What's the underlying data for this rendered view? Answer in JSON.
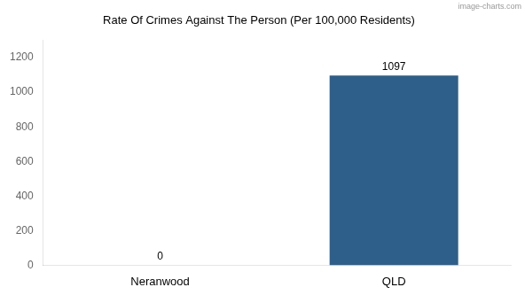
{
  "chart_data": {
    "type": "bar",
    "title": "Rate Of Crimes Against The Person (Per 100,000 Residents)",
    "categories": [
      "Neranwood",
      "QLD"
    ],
    "values": [
      0,
      1097
    ],
    "color": "#2e5f8a",
    "ylim": [
      0,
      1300
    ],
    "yticks": [
      0,
      200,
      400,
      600,
      800,
      1000,
      1200
    ],
    "grid": false,
    "data_labels": true,
    "annotations": [
      "image-charts.com"
    ]
  }
}
